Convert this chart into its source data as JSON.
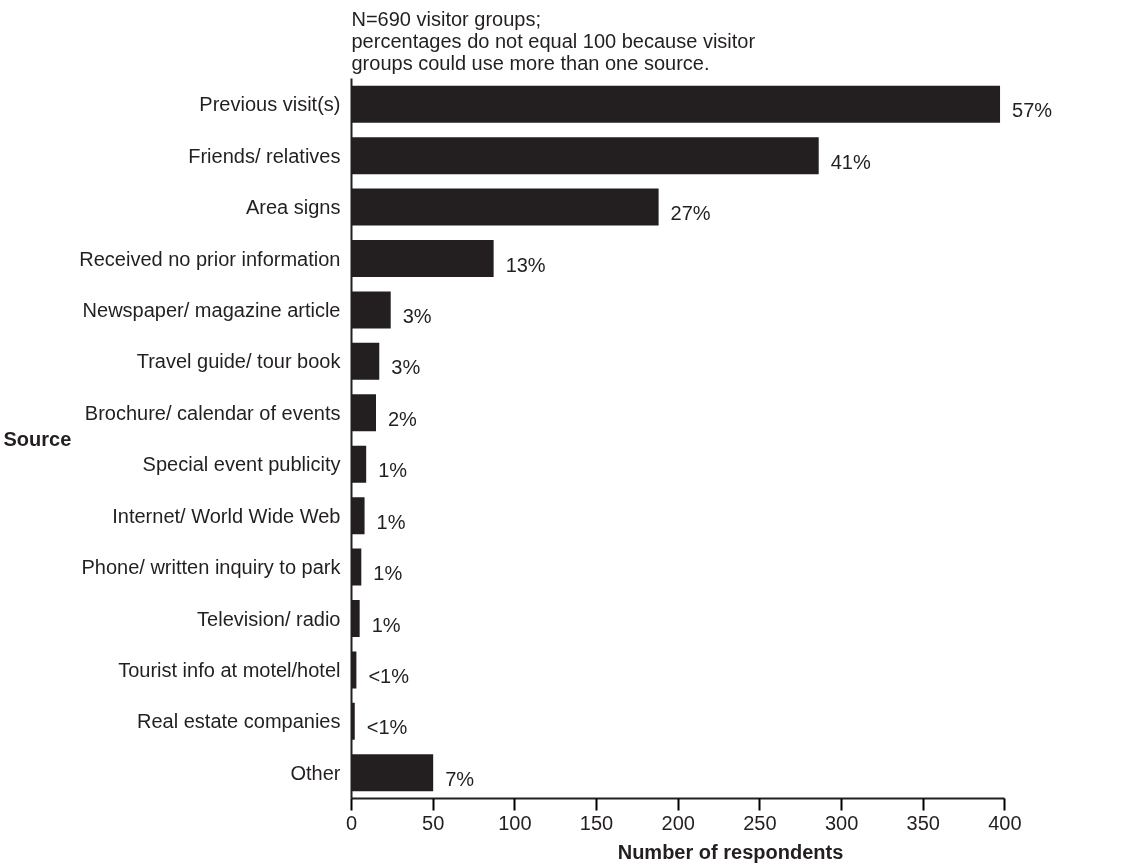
{
  "chart_data": {
    "type": "bar",
    "orientation": "horizontal",
    "title": "N=690 visitor groups;\npercentages do not equal 100 because visitor\ngroups could use more than one source.",
    "xlabel": "Number of respondents",
    "ylabel": "Source",
    "categories": [
      "Previous visit(s)",
      "Friends/ relatives",
      "Area signs",
      "Received no prior information",
      "Newspaper/ magazine article",
      "Travel guide/ tour book",
      "Brochure/ calendar of events",
      "Special event publicity",
      "Internet/ World Wide Web",
      "Phone/ written inquiry to park",
      "Television/ radio",
      "Tourist info at motel/hotel",
      "Real estate companies",
      "Other"
    ],
    "values": [
      397,
      286,
      188,
      87,
      24,
      17,
      15,
      9,
      8,
      6,
      5,
      3,
      2,
      50
    ],
    "annotations": [
      {
        "text": "57%",
        "x": 397,
        "y": "Previous visit(s)"
      },
      {
        "text": "41%",
        "x": 286,
        "y": "Friends/ relatives"
      },
      {
        "text": "27%",
        "x": 188,
        "y": "Area signs"
      },
      {
        "text": "13%",
        "x": 87,
        "y": "Received no prior information"
      },
      {
        "text": "3%",
        "x": 24,
        "y": "Newspaper/ magazine article"
      },
      {
        "text": "3%",
        "x": 17,
        "y": "Travel guide/ tour book"
      },
      {
        "text": "2%",
        "x": 15,
        "y": "Brochure/ calendar of events"
      },
      {
        "text": "1%",
        "x": 9,
        "y": "Special event publicity"
      },
      {
        "text": "1%",
        "x": 8,
        "y": "Internet/ World Wide Web"
      },
      {
        "text": "1%",
        "x": 6,
        "y": "Phone/ written inquiry to park"
      },
      {
        "text": "1%",
        "x": 5,
        "y": "Television/ radio"
      },
      {
        "text": "<1%",
        "x": 3,
        "y": "Tourist info at motel/hotel"
      },
      {
        "text": "<1%",
        "x": 2,
        "y": "Real estate companies"
      },
      {
        "text": "7%",
        "x": 50,
        "y": "Other"
      }
    ],
    "color": "#231f20",
    "xlim": [
      0,
      400
    ],
    "xticks": [
      0,
      50,
      100,
      150,
      200,
      250,
      300,
      350,
      400
    ],
    "grid": false
  }
}
